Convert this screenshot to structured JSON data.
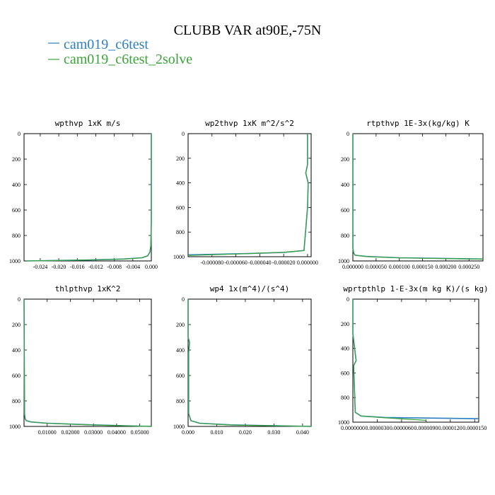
{
  "figure": {
    "title": "CLUBB VAR at90E,-75N",
    "legend": [
      {
        "name": "cam019_c6test",
        "color": "#2b7fc0"
      },
      {
        "name": "cam019_c6test_2solve",
        "color": "#3aa33a"
      }
    ]
  },
  "chart_data": [
    {
      "type": "line",
      "title": "wpthvp   1xK m/s",
      "xlim": [
        -0.0275,
        0.0
      ],
      "ylim": [
        1000,
        0
      ],
      "x_ticks": [
        -0.024,
        -0.02,
        -0.016,
        -0.012,
        -0.008,
        -0.004,
        0.0
      ],
      "x_tick_labels": [
        "-0.024",
        "-0.020",
        "-0.016",
        "-0.012",
        "-0.008",
        "-0.004",
        "0.000"
      ],
      "y_ticks": [
        0,
        200,
        400,
        600,
        800,
        1000
      ],
      "series": [
        {
          "name": "cam019_c6test",
          "x": [
            0.0,
            0.0,
            -0.0001,
            -0.0003,
            -0.0008,
            -0.002,
            -0.006,
            -0.014,
            -0.027
          ],
          "y": [
            0,
            700,
            880,
            930,
            960,
            975,
            985,
            993,
            1000
          ]
        },
        {
          "name": "cam019_c6test_2solve",
          "x": [
            0.0,
            0.0,
            -0.0001,
            -0.0003,
            -0.0008,
            -0.002,
            -0.006,
            -0.014,
            -0.027
          ],
          "y": [
            0,
            700,
            880,
            930,
            960,
            975,
            985,
            993,
            1000
          ]
        }
      ]
    },
    {
      "type": "line",
      "title": "wp2thvp   1xK m^2/s^2",
      "xlim": [
        -0.0001,
        3e-06
      ],
      "ylim": [
        1000,
        0
      ],
      "x_ticks": [
        -8e-05,
        -6e-05,
        -4e-05,
        -2e-05,
        0.0
      ],
      "x_tick_labels": [
        "-0.000080",
        "-0.000060",
        "-0.000040",
        "-0.000020",
        "0.000000"
      ],
      "y_ticks": [
        0,
        200,
        400,
        600,
        800,
        1000
      ],
      "series": [
        {
          "name": "cam019_c6test",
          "x": [
            0.0,
            0.0,
            -1.5e-06,
            5e-07,
            0.0,
            -3e-06,
            -2e-05,
            -5e-05,
            -0.0001
          ],
          "y": [
            0,
            250,
            320,
            400,
            600,
            950,
            965,
            975,
            985
          ]
        },
        {
          "name": "cam019_c6test_2solve",
          "x": [
            0.0,
            0.0,
            -1.5e-06,
            5e-07,
            0.0,
            -3e-06,
            -2e-05,
            -5e-05,
            -0.0001
          ],
          "y": [
            0,
            250,
            320,
            400,
            600,
            950,
            965,
            975,
            990
          ]
        }
      ]
    },
    {
      "type": "line",
      "title": "rtpthvp   1E-3x(kg/kg) K",
      "xlim": [
        0.0,
        0.00028
      ],
      "ylim": [
        1000,
        0
      ],
      "x_ticks": [
        0.0,
        5e-05,
        0.0001,
        0.00015,
        0.0002,
        0.00025
      ],
      "x_tick_labels": [
        "0.000000",
        "0.000050",
        "0.000100",
        "0.000150",
        "0.000200",
        "0.000250"
      ],
      "y_ticks": [
        0,
        200,
        400,
        600,
        800,
        1000
      ],
      "series": [
        {
          "name": "cam019_c6test",
          "x": [
            0.0,
            0.0,
            2e-06,
            5e-06,
            3e-05,
            0.0001,
            0.00028
          ],
          "y": [
            0,
            900,
            940,
            955,
            965,
            975,
            985
          ]
        },
        {
          "name": "cam019_c6test_2solve",
          "x": [
            0.0,
            0.0,
            2e-06,
            5e-06,
            3e-05,
            0.0001,
            0.00028
          ],
          "y": [
            0,
            900,
            940,
            955,
            966,
            976,
            986
          ]
        }
      ]
    },
    {
      "type": "line",
      "title": "thlpthvp   1xK^2",
      "xlim": [
        0.0,
        0.055
      ],
      "ylim": [
        1000,
        0
      ],
      "x_ticks": [
        0.01,
        0.02,
        0.03,
        0.04,
        0.05
      ],
      "x_tick_labels": [
        "0.01000",
        "0.02000",
        "0.03000",
        "0.04000",
        "0.05000"
      ],
      "y_ticks": [
        0,
        200,
        400,
        600,
        800,
        1000
      ],
      "series": [
        {
          "name": "cam019_c6test",
          "x": [
            0.0,
            0.0002,
            0.0005,
            0.001,
            0.003,
            0.01,
            0.03,
            0.055
          ],
          "y": [
            0,
            900,
            940,
            955,
            965,
            975,
            988,
            1000
          ]
        },
        {
          "name": "cam019_c6test_2solve",
          "x": [
            0.0,
            0.0002,
            0.0005,
            0.001,
            0.003,
            0.01,
            0.03,
            0.055
          ],
          "y": [
            0,
            900,
            940,
            955,
            965,
            976,
            989,
            1000
          ]
        }
      ]
    },
    {
      "type": "line",
      "title": "wp4   1x(m^4)/(s^4)",
      "xlim": [
        0.0,
        0.043
      ],
      "ylim": [
        1000,
        0
      ],
      "x_ticks": [
        0.0,
        0.01,
        0.02,
        0.03,
        0.04
      ],
      "x_tick_labels": [
        "0.000",
        "0.010",
        "0.020",
        "0.030",
        "0.040"
      ],
      "y_ticks": [
        0,
        200,
        400,
        600,
        800,
        1000
      ],
      "series": [
        {
          "name": "cam019_c6test",
          "x": [
            0.0,
            0.0,
            0.0005,
            0.0002,
            0.0002,
            0.001,
            0.004,
            0.015,
            0.043
          ],
          "y": [
            0,
            300,
            340,
            420,
            900,
            955,
            975,
            988,
            1000
          ]
        },
        {
          "name": "cam019_c6test_2solve",
          "x": [
            0.0,
            0.0,
            0.0005,
            0.0002,
            0.0002,
            0.001,
            0.004,
            0.015,
            0.043
          ],
          "y": [
            0,
            300,
            340,
            420,
            900,
            955,
            976,
            989,
            1000
          ]
        }
      ]
    },
    {
      "type": "line",
      "title": "wprtpthlp   1-E-3x(m kg K)/(s kg)",
      "xlim": [
        0.0,
        1.55e-05
      ],
      "ylim": [
        1000,
        0
      ],
      "x_ticks": [
        0.0,
        3e-06,
        6e-06,
        9e-06,
        1.2e-05,
        1.5e-05
      ],
      "x_tick_labels": [
        "0.0000000",
        "0.0000030",
        "0.0000060",
        "0.0000090",
        "0.0000120",
        "0.0000150"
      ],
      "y_ticks": [
        0,
        200,
        400,
        600,
        800,
        1000
      ],
      "series": [
        {
          "name": "cam019_c6test",
          "x": [
            0.0,
            0.0,
            4e-07,
            1e-07,
            3e-07,
            1e-06,
            4e-06,
            1.55e-05
          ],
          "y": [
            0,
            280,
            500,
            540,
            920,
            950,
            962,
            972
          ]
        },
        {
          "name": "cam019_c6test_2solve",
          "x": [
            0.0,
            0.0,
            4e-07,
            1e-07,
            3e-07,
            1e-06,
            4e-06,
            9e-06
          ],
          "y": [
            0,
            280,
            500,
            540,
            920,
            950,
            965,
            985
          ]
        }
      ]
    }
  ]
}
